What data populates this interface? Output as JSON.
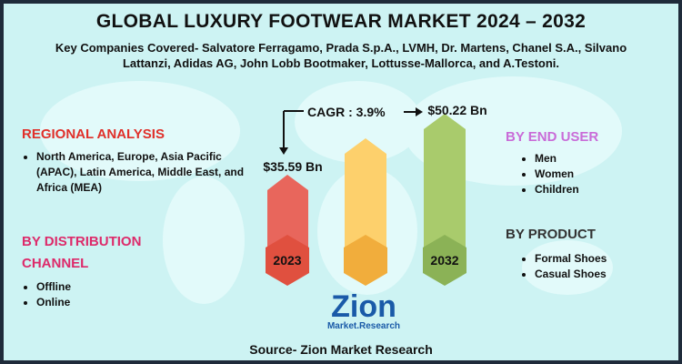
{
  "header": {
    "title": "GLOBAL LUXURY FOOTWEAR MARKET 2024 – 2032",
    "subtitle": "Key Companies Covered- Salvatore Ferragamo, Prada S.p.A., LVMH, Dr. Martens, Chanel S.A., Silvano Lattanzi, Adidas AG, John Lobb Bootmaker, Lottusse-Mallorca, and A.Testoni."
  },
  "regional_analysis": {
    "heading": "REGIONAL ANALYSIS",
    "items": [
      "North America, Europe, Asia Pacific (APAC), Latin America, Middle East, and Africa (MEA)"
    ]
  },
  "distribution_channel": {
    "heading": "BY DISTRIBUTION CHANNEL",
    "items": [
      "Offline",
      "Online"
    ]
  },
  "end_user": {
    "heading": "BY END USER",
    "items": [
      "Men",
      "Women",
      "Children"
    ]
  },
  "product": {
    "heading": "BY PRODUCT",
    "items": [
      "Formal Shoes",
      "Casual Shoes"
    ]
  },
  "market": {
    "start_value": "$35.59 Bn",
    "start_year": "2023",
    "cagr": "CAGR : 3.9%",
    "end_value": "$50.22 Bn",
    "end_year": "2032"
  },
  "logo": {
    "name": "Zion",
    "tagline": "Market.Research"
  },
  "source": "Source- Zion Market Research"
}
